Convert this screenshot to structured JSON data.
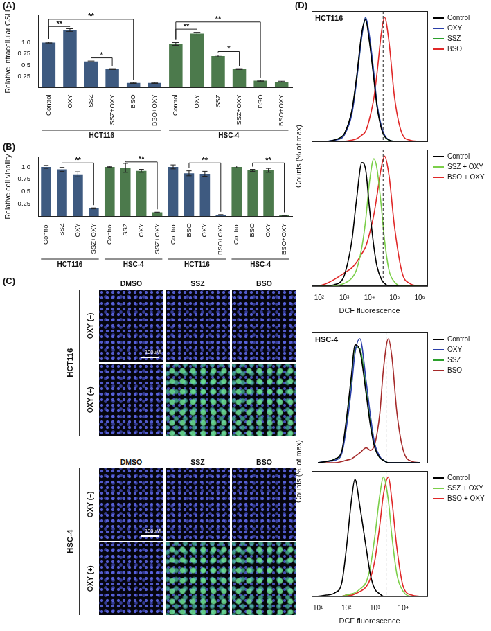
{
  "chart_data": [
    {
      "type": "bar",
      "panel": "(A)",
      "ylabel": "Relative intracellular GSH",
      "grid": false,
      "categories": [
        "Control",
        "OXY",
        "SSZ",
        "SSZ+OXY",
        "BSO",
        "BSO+OXY",
        "Control",
        "OXY",
        "SSZ",
        "SSZ+OXY",
        "BSO",
        "BSO+OXY"
      ],
      "values": [
        1.0,
        1.28,
        0.58,
        0.41,
        0.1,
        0.1,
        0.97,
        1.2,
        0.7,
        0.41,
        0.15,
        0.13
      ],
      "errors": [
        0.01,
        0.03,
        0.01,
        0.01,
        0.01,
        0.01,
        0.03,
        0.03,
        0.02,
        0.01,
        0.01,
        0.01
      ],
      "colors": [
        "#3e5a80",
        "#3e5a80",
        "#3e5a80",
        "#3e5a80",
        "#3e5a80",
        "#3e5a80",
        "#4c7a4c",
        "#4c7a4c",
        "#4c7a4c",
        "#4c7a4c",
        "#4c7a4c",
        "#4c7a4c"
      ],
      "groups": [
        {
          "label": "HCT116",
          "from": 0,
          "to": 5
        },
        {
          "label": "HSC-4",
          "from": 6,
          "to": 11
        }
      ],
      "significance": [
        {
          "from": 0,
          "to": 1,
          "label": "**",
          "y": 1.36
        },
        {
          "from": 0,
          "to": 4,
          "label": "**",
          "y": 1.52
        },
        {
          "from": 2,
          "to": 3,
          "label": "*",
          "y": 0.66
        },
        {
          "from": 6,
          "to": 7,
          "label": "**",
          "y": 1.3
        },
        {
          "from": 6,
          "to": 10,
          "label": "**",
          "y": 1.46
        },
        {
          "from": 8,
          "to": 9,
          "label": "*",
          "y": 0.8
        }
      ],
      "ylim": [
        0,
        1.6
      ],
      "yticks": [
        0.25,
        0.5,
        0.75,
        {
          "value": 1,
          "label": "1.0"
        }
      ]
    },
    {
      "type": "bar",
      "panel": "(B)",
      "ylabel": "Relative cell viability",
      "grid": false,
      "categories": [
        "Control",
        "SSZ",
        "OXY",
        "SSZ+OXY",
        "Control",
        "SSZ",
        "OXY",
        "SSZ+OXY",
        "Control",
        "BSO",
        "OXY",
        "BSO+OXY",
        "Control",
        "BSO",
        "OXY",
        "BSO+OXY"
      ],
      "values": [
        1.0,
        0.95,
        0.85,
        0.16,
        1.0,
        0.98,
        0.92,
        0.08,
        1.0,
        0.87,
        0.86,
        0.03,
        1.0,
        0.93,
        0.93,
        0.02
      ],
      "errors": [
        0.03,
        0.04,
        0.05,
        0.01,
        0.01,
        0.09,
        0.03,
        0.005,
        0.04,
        0.05,
        0.05,
        0.005,
        0.02,
        0.02,
        0.04,
        0.005
      ],
      "colors": [
        "#3e5a80",
        "#3e5a80",
        "#3e5a80",
        "#3e5a80",
        "#4c7a4c",
        "#4c7a4c",
        "#4c7a4c",
        "#4c7a4c",
        "#3e5a80",
        "#3e5a80",
        "#3e5a80",
        "#3e5a80",
        "#4c7a4c",
        "#4c7a4c",
        "#4c7a4c",
        "#4c7a4c"
      ],
      "groups": [
        {
          "label": "HCT116",
          "from": 0,
          "to": 3
        },
        {
          "label": "HSC-4",
          "from": 4,
          "to": 7
        },
        {
          "label": "HCT116",
          "from": 8,
          "to": 11
        },
        {
          "label": "HSC-4",
          "from": 12,
          "to": 15
        }
      ],
      "significance": [
        {
          "from": 1,
          "to": 3,
          "label": "**",
          "y": 1.08
        },
        {
          "from": 5,
          "to": 7,
          "label": "**",
          "y": 1.1
        },
        {
          "from": 9,
          "to": 11,
          "label": "**",
          "y": 1.08
        },
        {
          "from": 13,
          "to": 15,
          "label": "**",
          "y": 1.08
        }
      ],
      "ylim": [
        0,
        1.2
      ],
      "yticks": [
        0.25,
        0.5,
        0.75,
        {
          "value": 1,
          "label": "1.0"
        }
      ]
    },
    {
      "type": "line",
      "panel": "(D)",
      "title": "HCT116",
      "ylabel": "Counts (% of max)",
      "log": "x",
      "legend": "right",
      "tick_labels": false,
      "x": [
        100,
        200,
        400,
        700,
        1000,
        2000,
        3000,
        5000,
        7000,
        10000,
        15000,
        20000,
        30000,
        40000,
        60000,
        100000,
        200000,
        400000,
        1000000
      ],
      "series": [
        {
          "name": "Control",
          "color": "#000000",
          "values": [
            0,
            0,
            1,
            3,
            6,
            25,
            50,
            88,
            98,
            80,
            50,
            28,
            10,
            4,
            1,
            0,
            0,
            0,
            0
          ]
        },
        {
          "name": "OXY",
          "color": "#2b3fa8",
          "values": [
            0,
            0,
            1,
            2,
            5,
            22,
            47,
            85,
            100,
            85,
            55,
            30,
            12,
            5,
            1,
            0,
            0,
            0,
            0
          ]
        },
        {
          "name": "SSZ",
          "color": "#2ca02c",
          "values": [
            0,
            0,
            1,
            3,
            6,
            24,
            48,
            86,
            99,
            82,
            52,
            29,
            11,
            4,
            1,
            0,
            0,
            0,
            0
          ]
        },
        {
          "name": "BSO",
          "color": "#e02828",
          "values": [
            0,
            0,
            0,
            0,
            0,
            1,
            2,
            5,
            8,
            18,
            35,
            55,
            88,
            100,
            80,
            35,
            6,
            1,
            0
          ]
        }
      ],
      "reference_x": 35000,
      "xlim": [
        50,
        2000000
      ],
      "xticks": [
        {
          "value": 100,
          "label": "10²"
        },
        {
          "value": 1000,
          "label": "10³"
        },
        {
          "value": 10000,
          "label": "10⁴"
        },
        {
          "value": 100000,
          "label": "10⁵"
        },
        {
          "value": 1000000,
          "label": "10⁶"
        }
      ],
      "ylim": [
        0,
        105
      ]
    },
    {
      "type": "line",
      "xlabel": "DCF fluorescence",
      "log": "x",
      "legend": "right",
      "tick_labels": "x",
      "x": [
        100,
        200,
        400,
        700,
        1000,
        2000,
        3000,
        5000,
        7000,
        10000,
        15000,
        20000,
        30000,
        40000,
        60000,
        100000,
        200000,
        400000,
        1000000
      ],
      "series": [
        {
          "name": "Control",
          "color": "#000000",
          "values": [
            0,
            0,
            1,
            3,
            8,
            35,
            65,
            95,
            90,
            60,
            30,
            15,
            5,
            2,
            0,
            0,
            0,
            0,
            0
          ]
        },
        {
          "name": "SSZ + OXY",
          "color": "#7ccf4a",
          "values": [
            0,
            0,
            0,
            1,
            2,
            6,
            12,
            30,
            50,
            80,
            98,
            90,
            60,
            35,
            12,
            3,
            0,
            0,
            0
          ]
        },
        {
          "name": "BSO + OXY",
          "color": "#e02828",
          "values": [
            0,
            2,
            5,
            8,
            10,
            14,
            18,
            25,
            30,
            40,
            55,
            70,
            92,
            100,
            85,
            45,
            10,
            2,
            0
          ]
        }
      ],
      "reference_x": 35000,
      "xlim": [
        50,
        2000000
      ],
      "xticks": [
        {
          "value": 100,
          "label": "10²"
        },
        {
          "value": 1000,
          "label": "10³"
        },
        {
          "value": 10000,
          "label": "10⁴"
        },
        {
          "value": 100000,
          "label": "10⁵"
        },
        {
          "value": 1000000,
          "label": "10⁶"
        }
      ],
      "ylim": [
        0,
        105
      ]
    },
    {
      "type": "line",
      "title": "HSC-4",
      "ylabel": "Counts (% of max)",
      "log": "x",
      "legend": "right",
      "tick_labels": false,
      "x": [
        10,
        20,
        40,
        70,
        100,
        150,
        200,
        300,
        500,
        700,
        1000,
        1500,
        2000,
        3000,
        4000,
        6000,
        10000,
        20000,
        40000
      ],
      "series": [
        {
          "name": "Control",
          "color": "#000000",
          "values": [
            0,
            1,
            3,
            10,
            35,
            70,
            95,
            90,
            55,
            30,
            12,
            4,
            2,
            0,
            0,
            0,
            0,
            0,
            0
          ]
        },
        {
          "name": "OXY",
          "color": "#2b3fa8",
          "values": [
            0,
            1,
            2,
            8,
            28,
            60,
            88,
            100,
            65,
            38,
            15,
            5,
            2,
            0,
            0,
            0,
            0,
            0,
            0
          ]
        },
        {
          "name": "SSZ",
          "color": "#2ca02c",
          "values": [
            0,
            1,
            3,
            9,
            32,
            67,
            93,
            92,
            58,
            32,
            13,
            4,
            2,
            0,
            0,
            0,
            0,
            0,
            0
          ]
        },
        {
          "name": "BSO",
          "color": "#a52a2a",
          "values": [
            0,
            0,
            0,
            1,
            2,
            3,
            5,
            8,
            12,
            10,
            15,
            40,
            75,
            100,
            85,
            40,
            10,
            1,
            0
          ]
        }
      ],
      "reference_x": 2500,
      "xlim": [
        6,
        70000
      ],
      "xticks": [
        {
          "value": 10,
          "label": "10¹"
        },
        {
          "value": 100,
          "label": "10²"
        },
        {
          "value": 1000,
          "label": "10³"
        },
        {
          "value": 10000,
          "label": "10⁴"
        }
      ],
      "ylim": [
        0,
        105
      ]
    },
    {
      "type": "line",
      "xlabel": "DCF fluorescence",
      "log": "x",
      "legend": "right",
      "tick_labels": "x",
      "x": [
        10,
        20,
        40,
        70,
        100,
        150,
        200,
        300,
        500,
        700,
        1000,
        1500,
        2000,
        3000,
        4000,
        6000,
        10000,
        20000,
        40000
      ],
      "series": [
        {
          "name": "Control",
          "color": "#000000",
          "values": [
            0,
            1,
            3,
            12,
            40,
            80,
            98,
            75,
            40,
            18,
            6,
            2,
            0,
            0,
            0,
            0,
            0,
            0,
            0
          ]
        },
        {
          "name": "SSZ + OXY",
          "color": "#7ccf4a",
          "values": [
            0,
            0,
            0,
            0,
            1,
            2,
            3,
            6,
            12,
            25,
            50,
            85,
            100,
            80,
            50,
            18,
            4,
            0,
            0
          ]
        },
        {
          "name": "BSO + OXY",
          "color": "#e02828",
          "values": [
            0,
            0,
            0,
            0,
            1,
            1,
            2,
            4,
            8,
            15,
            30,
            60,
            85,
            100,
            80,
            40,
            8,
            1,
            0
          ]
        }
      ],
      "reference_x": 2500,
      "xlim": [
        6,
        70000
      ],
      "xticks": [
        {
          "value": 10,
          "label": "10¹"
        },
        {
          "value": 100,
          "label": "10²"
        },
        {
          "value": 1000,
          "label": "10³"
        },
        {
          "value": 10000,
          "label": "10⁴"
        }
      ],
      "ylim": [
        0,
        105
      ]
    }
  ],
  "image_panel": {
    "panel": "(C)",
    "blocks": [
      {
        "cell_line": "HCT116",
        "columns": [
          "DMSO",
          "SSZ",
          "BSO"
        ],
        "scale_bar": "100μM",
        "rows": [
          {
            "label": "OXY (–)",
            "colors": [
              "blue",
              "blue",
              "blue"
            ]
          },
          {
            "label": "OXY (+)",
            "colors": [
              "blue",
              "green",
              "green"
            ]
          }
        ]
      },
      {
        "cell_line": "HSC-4",
        "columns": [
          "DMSO",
          "SSZ",
          "BSO"
        ],
        "scale_bar": "100μM",
        "rows": [
          {
            "label": "OXY (–)",
            "colors": [
              "blue",
              "blue",
              "blue"
            ]
          },
          {
            "label": "OXY (+)",
            "colors": [
              "blue",
              "green",
              "green"
            ]
          }
        ]
      }
    ]
  }
}
